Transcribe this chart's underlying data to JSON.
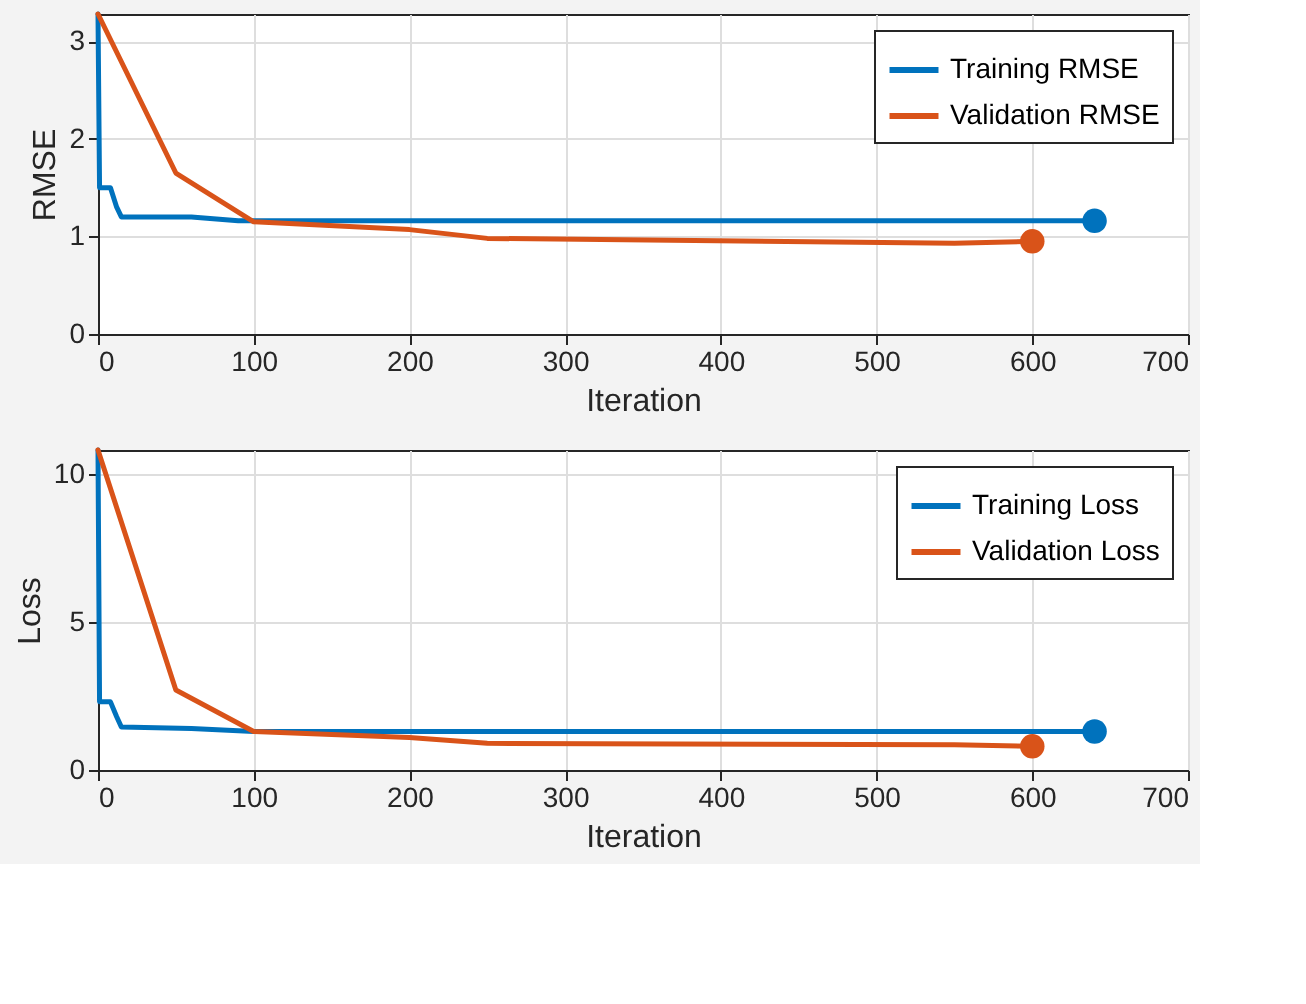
{
  "chart_data": [
    {
      "type": "line",
      "xlabel": "Iteration",
      "ylabel": "RMSE",
      "xlim": [
        0,
        700
      ],
      "xticks": [
        0,
        100,
        200,
        300,
        400,
        500,
        600,
        700
      ],
      "ylim": [
        0,
        3.28
      ],
      "yticks": [
        0,
        1,
        2,
        3
      ],
      "grid": true,
      "legend": "top right",
      "line_style": "solid",
      "series": [
        {
          "name": "Training RMSE",
          "color": "#0072bd",
          "x": [
            0,
            1,
            8,
            12,
            15,
            20,
            60,
            90,
            640
          ],
          "values": [
            3.28,
            1.5,
            1.5,
            1.3,
            1.2,
            1.2,
            1.2,
            1.16,
            1.16
          ]
        },
        {
          "name": "Validation RMSE",
          "color": "#d95319",
          "x": [
            0,
            50,
            100,
            200,
            250,
            550,
            600
          ],
          "values": [
            3.28,
            1.65,
            1.15,
            1.07,
            0.98,
            0.93,
            0.95
          ]
        },
        {
          "type": "scatter",
          "marker": "circle",
          "color": "#0072bd",
          "x": [
            640
          ],
          "values": [
            1.16
          ]
        },
        {
          "type": "scatter",
          "marker": "circle",
          "color": "#d95319",
          "x": [
            600
          ],
          "values": [
            0.95
          ]
        }
      ]
    },
    {
      "type": "line",
      "xlabel": "Iteration",
      "ylabel": "Loss",
      "xlim": [
        0,
        700
      ],
      "xticks": [
        0,
        100,
        200,
        300,
        400,
        500,
        600,
        700
      ],
      "ylim": [
        0,
        10.8
      ],
      "yticks": [
        0,
        5,
        10
      ],
      "grid": true,
      "legend": "top right",
      "line_style": "solid",
      "series": [
        {
          "name": "Training Loss",
          "color": "#0072bd",
          "x": [
            0,
            1,
            8,
            12,
            15,
            60,
            100,
            640
          ],
          "values": [
            10.8,
            2.3,
            2.3,
            1.8,
            1.45,
            1.4,
            1.3,
            1.3
          ]
        },
        {
          "name": "Validation Loss",
          "color": "#d95319",
          "x": [
            0,
            50,
            100,
            200,
            250,
            550,
            600
          ],
          "values": [
            10.8,
            2.7,
            1.3,
            1.1,
            0.9,
            0.85,
            0.8
          ]
        },
        {
          "type": "scatter",
          "marker": "circle",
          "color": "#0072bd",
          "x": [
            640
          ],
          "values": [
            1.3
          ]
        },
        {
          "type": "scatter",
          "marker": "circle",
          "color": "#d95319",
          "x": [
            600
          ],
          "values": [
            0.8
          ]
        }
      ]
    }
  ]
}
